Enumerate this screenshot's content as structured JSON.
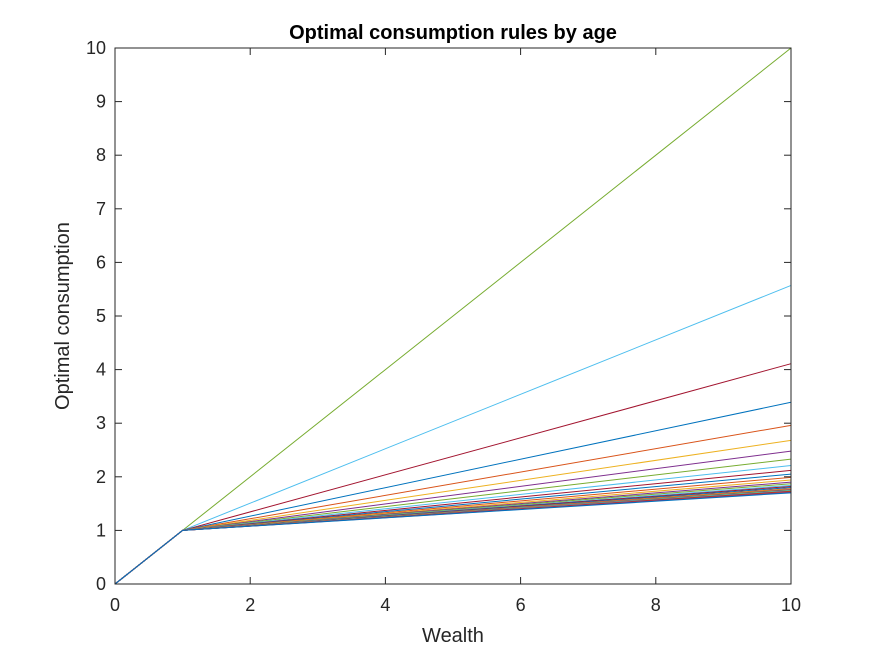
{
  "chart_data": {
    "type": "line",
    "title": "Optimal consumption rules by age",
    "xlabel": "Wealth",
    "ylabel": "Optimal consumption",
    "xlim": [
      0,
      10
    ],
    "ylim": [
      0,
      10
    ],
    "xticks": [
      0,
      2,
      4,
      6,
      8,
      10
    ],
    "yticks": [
      0,
      1,
      2,
      3,
      4,
      5,
      6,
      7,
      8,
      9,
      10
    ],
    "grid": false,
    "legend": "none",
    "box": true,
    "x": [
      0,
      1,
      10
    ],
    "series": [
      {
        "color": "#77AC30",
        "values": [
          0,
          1,
          10
        ]
      },
      {
        "color": "#4DBEEE",
        "values": [
          0,
          1,
          5.57
        ]
      },
      {
        "color": "#A2142F",
        "values": [
          0,
          1,
          4.11
        ]
      },
      {
        "color": "#0072BD",
        "values": [
          0,
          1,
          3.39
        ]
      },
      {
        "color": "#D95319",
        "values": [
          0,
          1,
          2.96
        ]
      },
      {
        "color": "#EDB120",
        "values": [
          0,
          1,
          2.68
        ]
      },
      {
        "color": "#7E2F8E",
        "values": [
          0,
          1,
          2.48
        ]
      },
      {
        "color": "#77AC30",
        "values": [
          0,
          1,
          2.33
        ]
      },
      {
        "color": "#4DBEEE",
        "values": [
          0,
          1,
          2.21
        ]
      },
      {
        "color": "#A2142F",
        "values": [
          0,
          1,
          2.12
        ]
      },
      {
        "color": "#0072BD",
        "values": [
          0,
          1,
          2.05
        ]
      },
      {
        "color": "#D95319",
        "values": [
          0,
          1,
          1.99
        ]
      },
      {
        "color": "#EDB120",
        "values": [
          0,
          1,
          1.94
        ]
      },
      {
        "color": "#7E2F8E",
        "values": [
          0,
          1,
          1.9
        ]
      },
      {
        "color": "#77AC30",
        "values": [
          0,
          1,
          1.87
        ]
      },
      {
        "color": "#4DBEEE",
        "values": [
          0,
          1,
          1.84
        ]
      },
      {
        "color": "#A2142F",
        "values": [
          0,
          1,
          1.82
        ]
      },
      {
        "color": "#0072BD",
        "values": [
          0,
          1,
          1.8
        ]
      },
      {
        "color": "#D95319",
        "values": [
          0,
          1,
          1.78
        ]
      },
      {
        "color": "#EDB120",
        "values": [
          0,
          1,
          1.77
        ]
      },
      {
        "color": "#7E2F8E",
        "values": [
          0,
          1,
          1.76
        ]
      },
      {
        "color": "#77AC30",
        "values": [
          0,
          1,
          1.75
        ]
      },
      {
        "color": "#4DBEEE",
        "values": [
          0,
          1,
          1.74
        ]
      },
      {
        "color": "#A2142F",
        "values": [
          0,
          1,
          1.73
        ]
      },
      {
        "color": "#D95319",
        "values": [
          0,
          1,
          1.72
        ]
      },
      {
        "color": "#7E2F8E",
        "values": [
          0,
          1,
          1.71
        ]
      },
      {
        "color": "#0072BD",
        "values": [
          0,
          1,
          1.7
        ]
      }
    ]
  }
}
